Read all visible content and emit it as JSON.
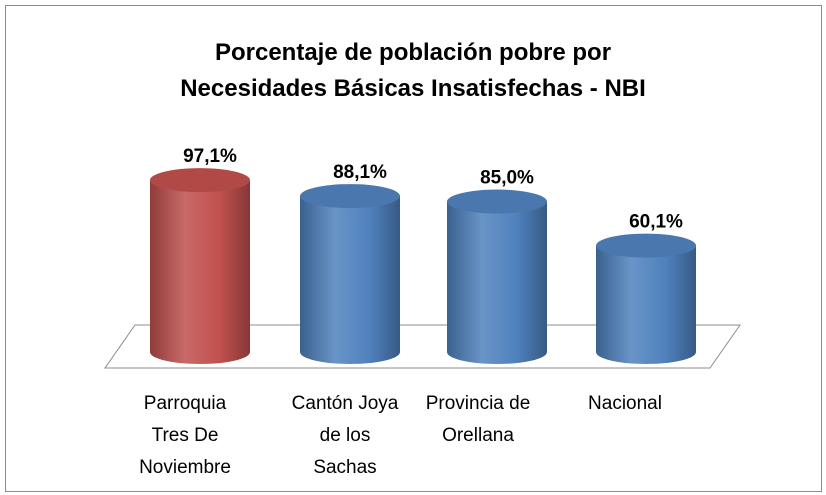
{
  "chart_data": {
    "type": "bar",
    "title": [
      "Porcentaje de población pobre por",
      "Necesidades Básicas Insatisfechas - NBI"
    ],
    "categories": [
      "Parroquia Tres De Noviembre",
      "Cantón Joya de los Sachas",
      "Provincia de Orellana",
      "Nacional"
    ],
    "values": [
      97.1,
      88.1,
      85.0,
      60.1
    ],
    "value_labels": [
      "97,1%",
      "88,1%",
      "85,0%",
      "60,1%"
    ],
    "colors": [
      "#c0504d",
      "#4f81bd",
      "#4f81bd",
      "#4f81bd"
    ]
  }
}
